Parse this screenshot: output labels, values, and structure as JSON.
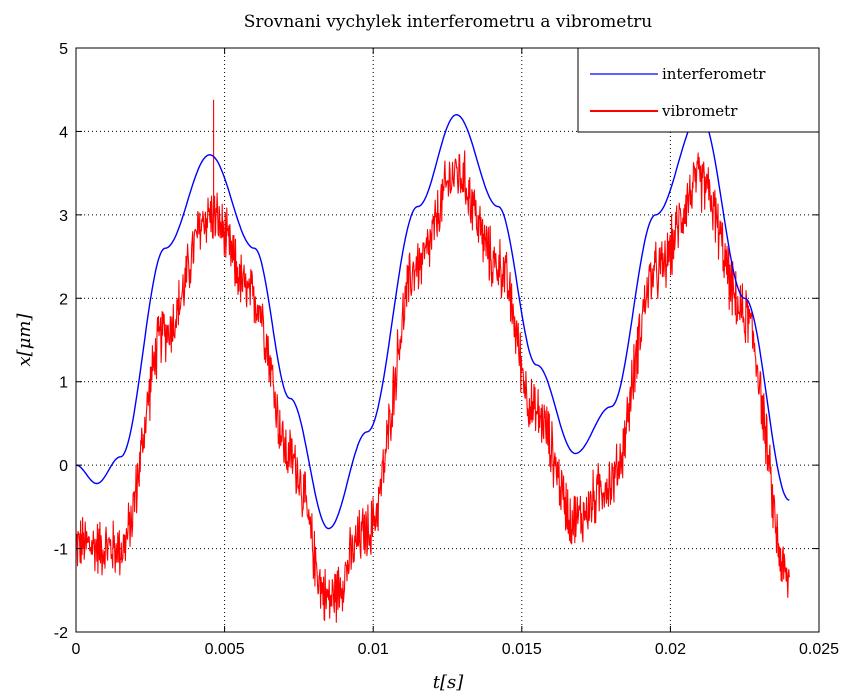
{
  "chart_data": {
    "type": "line",
    "title": "Srovnani vychylek interferometru a vibrometru",
    "xlabel": "t[s]",
    "ylabel": "x[μm]",
    "xlim": [
      0,
      0.025
    ],
    "ylim": [
      -2,
      5
    ],
    "xticks": [
      0,
      0.005,
      0.01,
      0.015,
      0.02,
      0.025
    ],
    "xtick_labels": [
      "0",
      "0.005",
      "0.01",
      "0.015",
      "0.02",
      "0.025"
    ],
    "yticks": [
      -2,
      -1,
      0,
      1,
      2,
      3,
      4,
      5
    ],
    "ytick_labels": [
      "-2",
      "-1",
      "0",
      "1",
      "2",
      "3",
      "4",
      "5"
    ],
    "grid": true,
    "legend_position": "top-right",
    "series": [
      {
        "name": "interferometr",
        "color": "#0000ff",
        "x": [
          0,
          0.0007,
          0.0015,
          0.003,
          0.0045,
          0.006,
          0.0072,
          0.0085,
          0.0098,
          0.0115,
          0.0128,
          0.0142,
          0.0155,
          0.0168,
          0.018,
          0.0195,
          0.021,
          0.0225,
          0.024
        ],
        "y": [
          0,
          -0.22,
          0.1,
          2.6,
          3.72,
          2.6,
          0.8,
          -0.76,
          0.4,
          3.1,
          4.2,
          3.1,
          1.2,
          0.14,
          0.7,
          3.0,
          4.2,
          2.0,
          -0.42
        ]
      },
      {
        "name": "vibrometr",
        "color": "#ff0000",
        "x": [
          0,
          0.0015,
          0.003,
          0.0045,
          0.006,
          0.0072,
          0.0085,
          0.0098,
          0.0115,
          0.0128,
          0.0142,
          0.0155,
          0.0168,
          0.018,
          0.0195,
          0.021,
          0.0225,
          0.024
        ],
        "y": [
          -0.95,
          -1.0,
          1.6,
          3.0,
          2.0,
          0.1,
          -1.6,
          -0.8,
          2.4,
          3.5,
          2.4,
          0.6,
          -0.65,
          -0.2,
          2.3,
          3.4,
          1.8,
          -1.4
        ],
        "noise_amplitude": 0.35,
        "spikes": [
          {
            "x": 0.00463,
            "y": 4.38
          }
        ]
      }
    ]
  }
}
